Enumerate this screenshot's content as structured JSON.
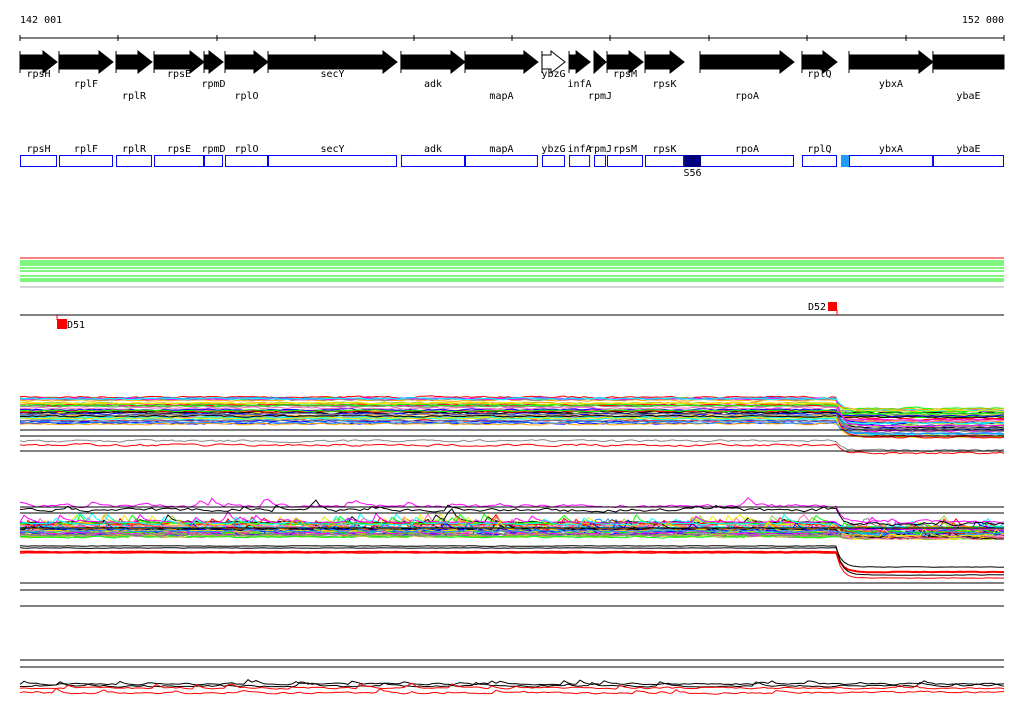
{
  "ruler": {
    "start_label": "142 001",
    "end_label": "152 000",
    "start_bp": 142001,
    "end_bp": 152000,
    "tick_interval_bp": 1000
  },
  "colors": {
    "gene_fill": "#000000",
    "box_stroke": "#0000ff",
    "site_dark": "#000080",
    "site_light": "#1e9bff",
    "marker": "#ff0000",
    "reference_line": "#ff0000",
    "green_lines": "#00ee00"
  },
  "genes": [
    {
      "name": "rpsH",
      "start": 142001,
      "end": 142377,
      "strand": "+",
      "filled": true
    },
    {
      "name": "rplF",
      "start": 142397,
      "end": 142946,
      "strand": "+",
      "filled": true
    },
    {
      "name": "rplR",
      "start": 142977,
      "end": 143342,
      "strand": "+",
      "filled": true
    },
    {
      "name": "rpsE",
      "start": 143363,
      "end": 143871,
      "strand": "+",
      "filled": true
    },
    {
      "name": "rpmD",
      "start": 143871,
      "end": 144064,
      "strand": "+",
      "filled": true
    },
    {
      "name": "rplO",
      "start": 144084,
      "end": 144521,
      "strand": "+",
      "filled": true
    },
    {
      "name": "secY",
      "start": 144521,
      "end": 145832,
      "strand": "+",
      "filled": true
    },
    {
      "name": "adk",
      "start": 145872,
      "end": 146523,
      "strand": "+",
      "filled": true
    },
    {
      "name": "mapA",
      "start": 146523,
      "end": 147264,
      "strand": "+",
      "filled": true
    },
    {
      "name": "ybzG",
      "start": 147305,
      "end": 147539,
      "strand": "+",
      "filled": false
    },
    {
      "name": "infA",
      "start": 147580,
      "end": 147794,
      "strand": "+",
      "filled": true
    },
    {
      "name": "rpmJ",
      "start": 147834,
      "end": 147956,
      "strand": "+",
      "filled": true
    },
    {
      "name": "rpsM",
      "start": 147966,
      "end": 148332,
      "strand": "+",
      "filled": true
    },
    {
      "name": "rpsK",
      "start": 148352,
      "end": 148749,
      "strand": "+",
      "filled": true
    },
    {
      "name": "rpoA",
      "start": 148911,
      "end": 149866,
      "strand": "+",
      "filled": true
    },
    {
      "name": "rplQ",
      "start": 149947,
      "end": 150303,
      "strand": "+",
      "filled": true
    },
    {
      "name": "ybxA",
      "start": 150425,
      "end": 151278,
      "strand": "+",
      "filled": true
    },
    {
      "name": "ybaE",
      "start": 151278,
      "end": 152000,
      "strand": "+",
      "filled": true,
      "no_head": true
    }
  ],
  "sites": [
    {
      "label": "S56",
      "start": 148749,
      "end": 148921,
      "color": "#000080"
    },
    {
      "label": "",
      "start": 150343,
      "end": 150425,
      "color": "#1e9bff"
    }
  ],
  "markers": [
    {
      "label": "D51",
      "position": 142377,
      "side": "below"
    },
    {
      "label": "D52",
      "position": 150303,
      "side": "above"
    }
  ],
  "breakpoint_bp": 150200
}
